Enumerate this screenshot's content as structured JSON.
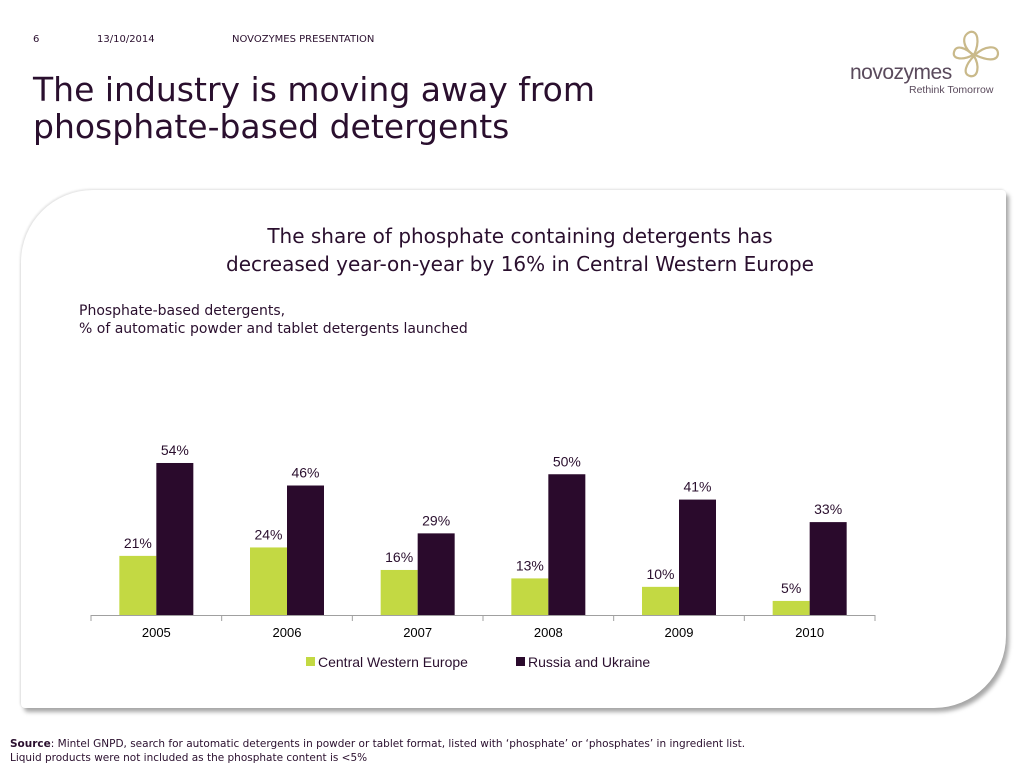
{
  "header": {
    "page_number": "6",
    "date": "13/10/2014",
    "label": "NOVOZYMES PRESENTATION"
  },
  "title": {
    "line1": "The industry is moving away from",
    "line2": "phosphate-based detergents"
  },
  "logo": {
    "wordmark": "novozymes",
    "tagline": "Rethink Tomorrow"
  },
  "headline": {
    "line1": "The share of phosphate containing detergents has",
    "line2": "decreased year-on-year by 16% in Central Western Europe"
  },
  "subtitle": {
    "line1": "Phosphate-based detergents,",
    "line2": "% of automatic powder and tablet detergents launched"
  },
  "chart_data": {
    "type": "bar",
    "categories": [
      "2005",
      "2006",
      "2007",
      "2008",
      "2009",
      "2010"
    ],
    "series": [
      {
        "name": "Central Western Europe",
        "values": [
          21,
          24,
          16,
          13,
          10,
          5
        ],
        "labels": [
          "21%",
          "24%",
          "16%",
          "13%",
          "10%",
          "5%"
        ],
        "color": "#c3d943"
      },
      {
        "name": "Russia and Ukraine",
        "values": [
          54,
          46,
          29,
          50,
          41,
          33
        ],
        "labels": [
          "54%",
          "46%",
          "29%",
          "50%",
          "41%",
          "33%"
        ],
        "color": "#2a0a2c"
      }
    ],
    "ylim": [
      0,
      60
    ],
    "legend": "bottom",
    "grid": false
  },
  "source": {
    "label": "Source",
    "line1": ": Mintel GNPD, search for automatic detergents in powder or tablet format, listed with ‘phosphate’ or ‘phosphates’ in ingredient list.",
    "line2": "Liquid products were not included as the phosphate content is <5%"
  }
}
